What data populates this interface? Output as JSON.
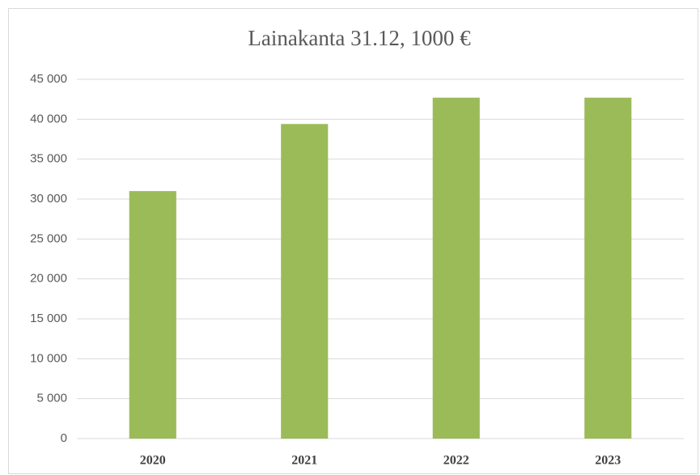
{
  "chart_data": {
    "type": "bar",
    "title": "Lainakanta 31.12, 1000 €",
    "categories": [
      "2020",
      "2021",
      "2022",
      "2023"
    ],
    "values": [
      31000,
      39400,
      42700,
      42700
    ],
    "color": "#9bbb59",
    "ylim": [
      0,
      45000
    ],
    "yticks": [
      0,
      {
        "value": 5000,
        "label": "5 000"
      },
      {
        "value": 10000,
        "label": "10 000"
      },
      {
        "value": 15000,
        "label": "15 000"
      },
      {
        "value": 20000,
        "label": "20 000"
      },
      {
        "value": 25000,
        "label": "25 000"
      },
      {
        "value": 30000,
        "label": "30 000"
      },
      {
        "value": 35000,
        "label": "35 000"
      },
      {
        "value": 40000,
        "label": "40 000"
      },
      {
        "value": 45000,
        "label": "45 000"
      }
    ],
    "grid": true
  }
}
